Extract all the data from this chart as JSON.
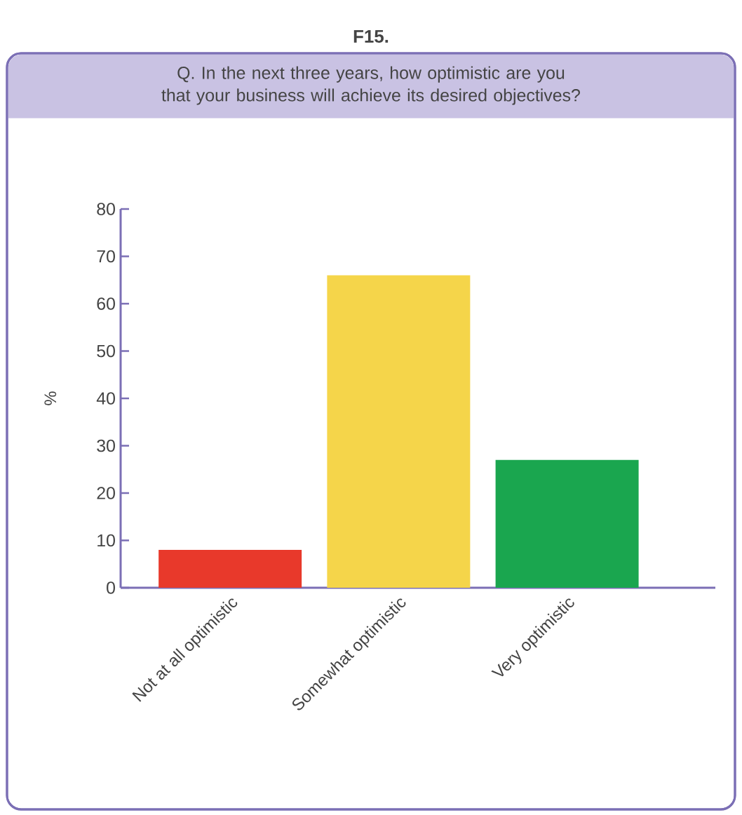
{
  "chart_data": {
    "type": "bar",
    "title": "F15.",
    "subtitle": "Q. In the next three years, how optimistic are you that your business will achieve its desired objectives?",
    "categories": [
      "Not at all optimistic",
      "Somewhat optimistic",
      "Very optimistic"
    ],
    "values": [
      8,
      66,
      27
    ],
    "colors": [
      "#e8392b",
      "#f5d54a",
      "#1aa64f"
    ],
    "ylabel": "%",
    "ylim": [
      0,
      80
    ],
    "yticks": [
      0,
      10,
      20,
      30,
      40,
      50,
      60,
      70,
      80
    ],
    "grid": false
  }
}
